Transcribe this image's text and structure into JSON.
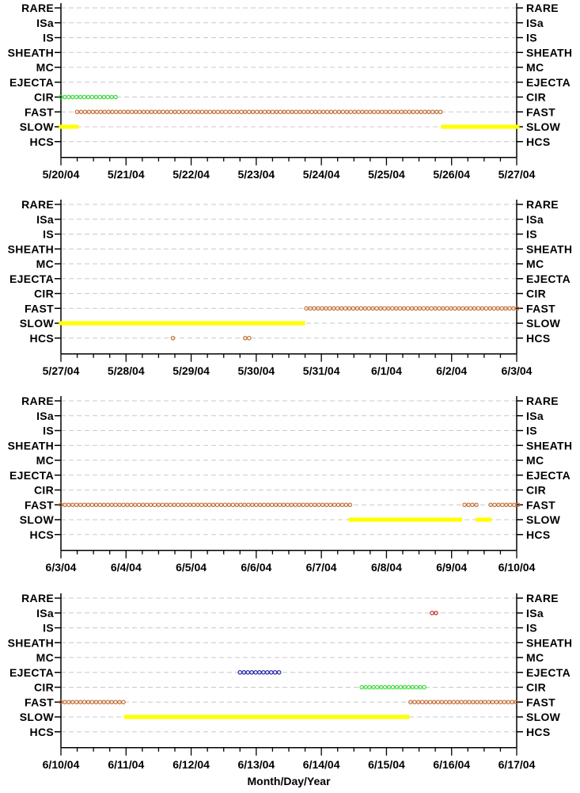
{
  "chart_data": {
    "type": "scatter",
    "category_levels": [
      "HCS",
      "SLOW",
      "FAST",
      "CIR",
      "EJECTA",
      "MC",
      "SHEATH",
      "IS",
      "ISa",
      "RARE"
    ],
    "xlabel": "Month/Day/Year",
    "grid": "dashed horizontal",
    "colors": {
      "SLOW": "#ffff00",
      "FAST": "#c46a2e",
      "CIR": "#33dd33",
      "EJECTA": "#1a1aa8",
      "HCS": "#c46a2e",
      "ISa": "#cc2222"
    },
    "panels": [
      {
        "x_range": [
          "2004-05-20",
          "2004-05-27"
        ],
        "xtick_labels": [
          "5/20/04",
          "5/21/04",
          "5/22/04",
          "5/23/04",
          "5/24/04",
          "5/25/04",
          "5/26/04",
          "5/27/04"
        ],
        "segments": [
          {
            "category": "CIR",
            "start_day": 0.0,
            "end_day": 0.85
          },
          {
            "category": "FAST",
            "start_day": 0.25,
            "end_day": 5.85
          },
          {
            "category": "SLOW",
            "start_day": 0.0,
            "end_day": 0.24
          },
          {
            "category": "SLOW",
            "start_day": 5.87,
            "end_day": 7.15
          }
        ]
      },
      {
        "x_range": [
          "2004-05-27",
          "2004-06-03"
        ],
        "xtick_labels": [
          "5/27/04",
          "5/28/04",
          "5/29/04",
          "5/30/04",
          "5/31/04",
          "6/1/04",
          "6/2/04",
          "6/3/04"
        ],
        "segments": [
          {
            "category": "SLOW",
            "start_day": 0.0,
            "end_day": 3.75
          },
          {
            "category": "FAST",
            "start_day": 3.77,
            "end_day": 7.15
          },
          {
            "category": "HCS",
            "start_day": 1.72,
            "end_day": 1.72
          },
          {
            "category": "HCS",
            "start_day": 2.83,
            "end_day": 2.9
          }
        ]
      },
      {
        "x_range": [
          "2004-06-03",
          "2004-06-10"
        ],
        "xtick_labels": [
          "6/3/04",
          "6/4/04",
          "6/5/04",
          "6/6/04",
          "6/7/04",
          "6/8/04",
          "6/9/04",
          "6/10/04"
        ],
        "segments": [
          {
            "category": "FAST",
            "start_day": 0.0,
            "end_day": 4.45
          },
          {
            "category": "SLOW",
            "start_day": 4.45,
            "end_day": 6.17
          },
          {
            "category": "FAST",
            "start_day": 6.2,
            "end_day": 6.4
          },
          {
            "category": "SLOW",
            "start_day": 6.4,
            "end_day": 6.6
          },
          {
            "category": "FAST",
            "start_day": 6.6,
            "end_day": 7.15
          }
        ]
      },
      {
        "x_range": [
          "2004-06-10",
          "2004-06-17"
        ],
        "xtick_labels": [
          "6/10/04",
          "6/11/04",
          "6/12/04",
          "6/13/04",
          "6/14/04",
          "6/15/04",
          "6/16/04",
          "6/17/04"
        ],
        "segments": [
          {
            "category": "FAST",
            "start_day": 0.0,
            "end_day": 0.98
          },
          {
            "category": "SLOW",
            "start_day": 1.0,
            "end_day": 5.37
          },
          {
            "category": "EJECTA",
            "start_day": 2.75,
            "end_day": 3.35
          },
          {
            "category": "CIR",
            "start_day": 4.62,
            "end_day": 5.6
          },
          {
            "category": "FAST",
            "start_day": 5.37,
            "end_day": 7.15
          },
          {
            "category": "ISa",
            "start_day": 5.7,
            "end_day": 5.78
          }
        ]
      }
    ]
  }
}
